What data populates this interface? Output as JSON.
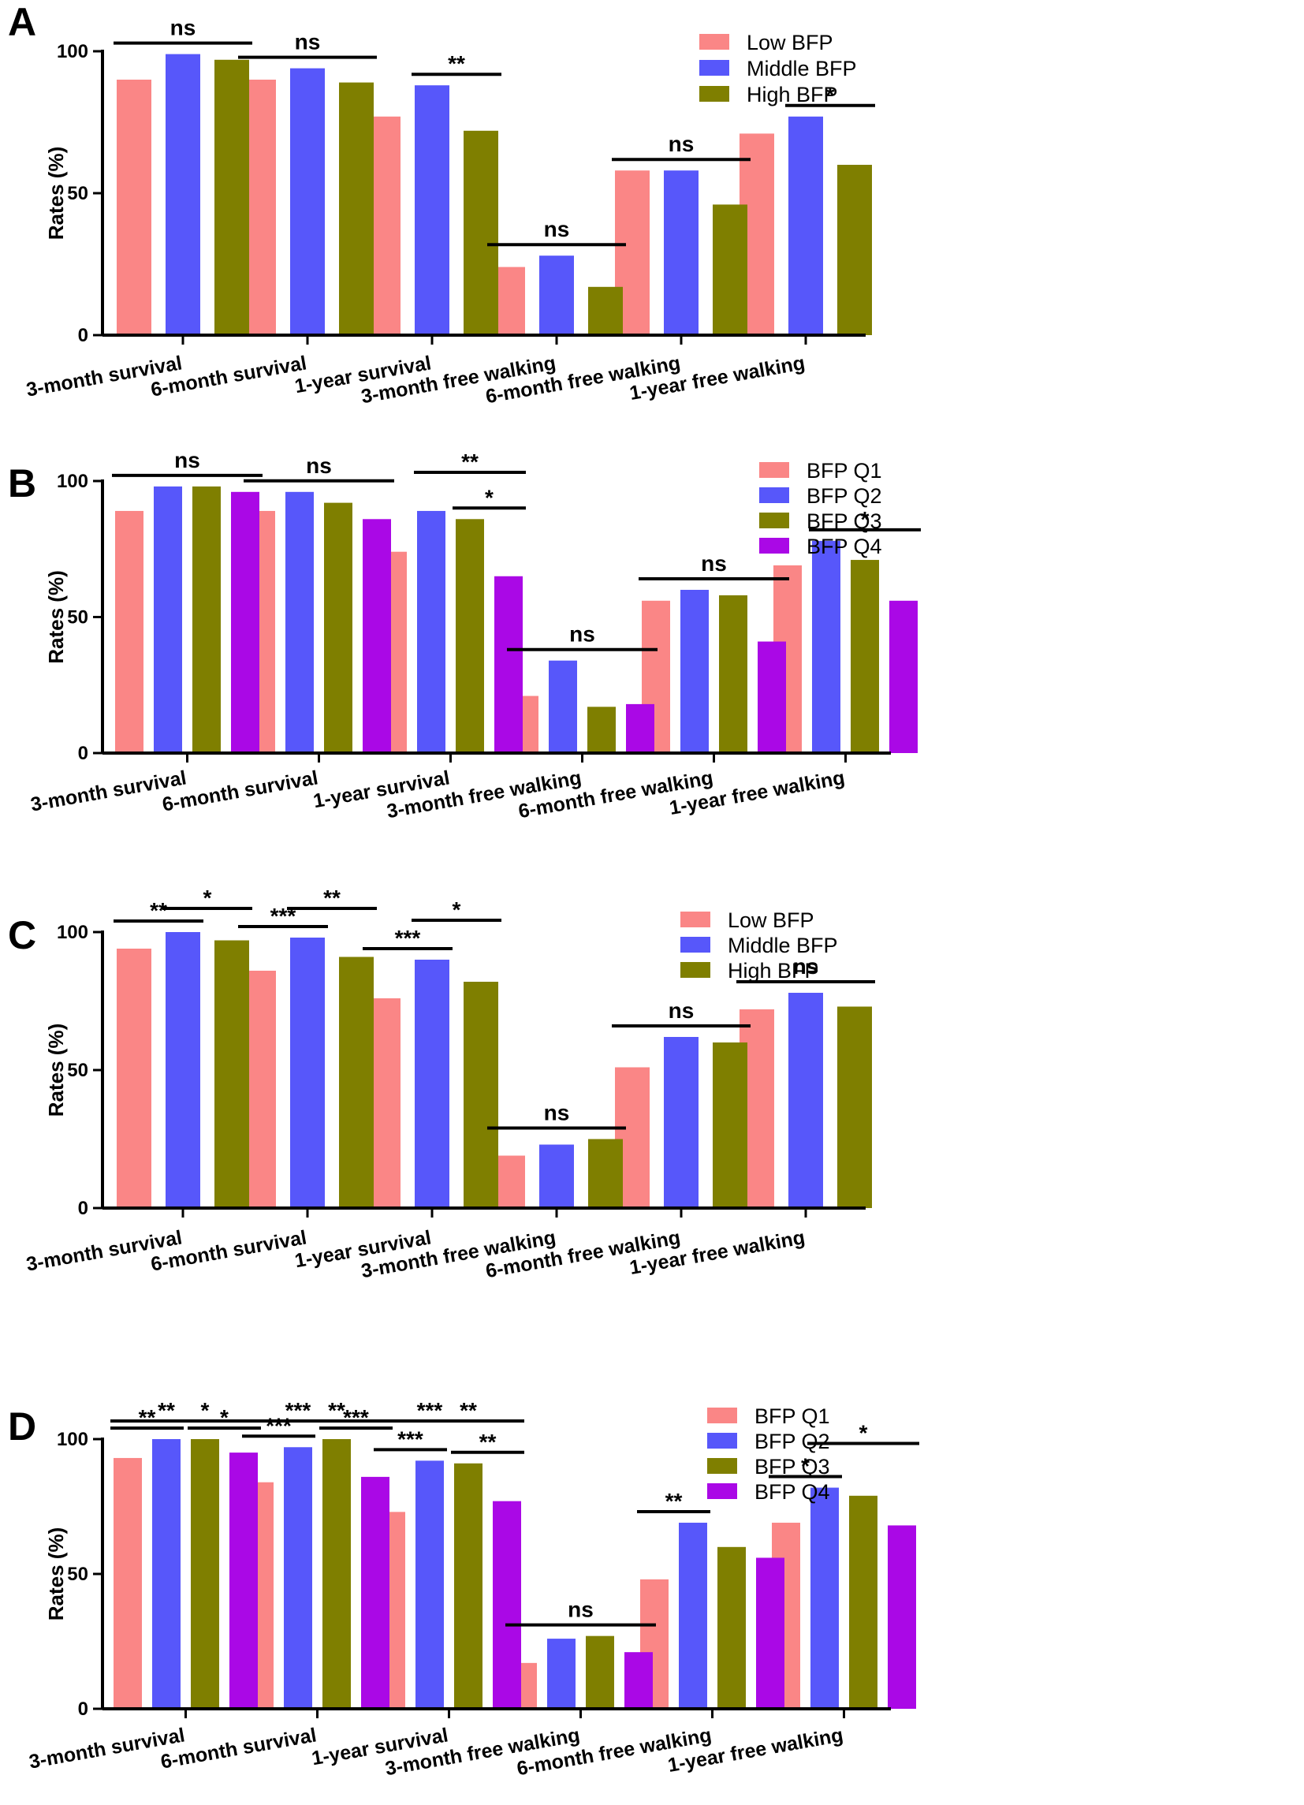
{
  "chart_data": [
    {
      "type": "bar",
      "panel_label": "A",
      "ylabel": "Rates (%)",
      "ylim": [
        0,
        100
      ],
      "yticks": [
        "0",
        "50",
        "100"
      ],
      "categories": [
        "3-month survival",
        "6-month survival",
        "1-year survival",
        "3-month free walking",
        "6-month free walking",
        "1-year free walking"
      ],
      "series": [
        {
          "name": "Low BFP",
          "color": "#fa8686",
          "values": [
            90,
            90,
            77,
            24,
            58,
            71
          ]
        },
        {
          "name": "Middle BFP",
          "color": "#5757fa",
          "values": [
            99,
            94,
            88,
            28,
            58,
            77
          ]
        },
        {
          "name": "High BFP",
          "color": "#7f7f00",
          "values": [
            97,
            89,
            72,
            17,
            46,
            60
          ]
        }
      ],
      "legend_position": "top-center",
      "annotations": [
        {
          "label": "ns",
          "category": 0,
          "from": 0,
          "to": 2,
          "level": 0
        },
        {
          "label": "ns",
          "category": 1,
          "from": 0,
          "to": 2,
          "level": 0
        },
        {
          "label": "**",
          "category": 2,
          "from": 1,
          "to": 2,
          "level": 0
        },
        {
          "label": "ns",
          "category": 3,
          "from": 0,
          "to": 2,
          "level": 0
        },
        {
          "label": "ns",
          "category": 4,
          "from": 0,
          "to": 2,
          "level": 0
        },
        {
          "label": "*",
          "category": 5,
          "from": 1,
          "to": 2,
          "level": 0
        }
      ]
    },
    {
      "type": "bar",
      "panel_label": "B",
      "ylabel": "Rates (%)",
      "ylim": [
        0,
        100
      ],
      "yticks": [
        "0",
        "50",
        "100"
      ],
      "categories": [
        "3-month survival",
        "6-month survival",
        "1-year survival",
        "3-month free walking",
        "6-month free walking",
        "1-year free walking"
      ],
      "series": [
        {
          "name": "BFP Q1",
          "color": "#fa8686",
          "values": [
            89,
            89,
            74,
            21,
            56,
            69
          ]
        },
        {
          "name": "BFP Q2",
          "color": "#5757fa",
          "values": [
            98,
            96,
            89,
            34,
            60,
            78
          ]
        },
        {
          "name": "BFP Q3",
          "color": "#7f7f00",
          "values": [
            98,
            92,
            86,
            17,
            58,
            71
          ]
        },
        {
          "name": "BFP Q4",
          "color": "#aa08e6",
          "values": [
            96,
            86,
            65,
            18,
            41,
            56
          ]
        }
      ],
      "legend_position": "top-center",
      "annotations": [
        {
          "label": "ns",
          "category": 0,
          "from": 0,
          "to": 3,
          "level": 0
        },
        {
          "label": "ns",
          "category": 1,
          "from": 0,
          "to": 3,
          "level": 0
        },
        {
          "label": "**",
          "category": 2,
          "from": 1,
          "to": 3,
          "level": 1
        },
        {
          "label": "*",
          "category": 2,
          "from": 2,
          "to": 3,
          "level": 0
        },
        {
          "label": "ns",
          "category": 3,
          "from": 0,
          "to": 3,
          "level": 0
        },
        {
          "label": "ns",
          "category": 4,
          "from": 0,
          "to": 3,
          "level": 0
        },
        {
          "label": "*",
          "category": 5,
          "from": 1,
          "to": 3,
          "level": 0
        }
      ]
    },
    {
      "type": "bar",
      "panel_label": "C",
      "ylabel": "Rates (%)",
      "ylim": [
        0,
        100
      ],
      "yticks": [
        "0",
        "50",
        "100"
      ],
      "categories": [
        "3-month survival",
        "6-month survival",
        "1-year survival",
        "3-month free walking",
        "6-month free walking",
        "1-year free walking"
      ],
      "series": [
        {
          "name": "Low BFP",
          "color": "#fa8686",
          "values": [
            94,
            86,
            76,
            19,
            51,
            72
          ]
        },
        {
          "name": "Middle BFP",
          "color": "#5757fa",
          "values": [
            100,
            98,
            90,
            23,
            62,
            78
          ]
        },
        {
          "name": "High BFP",
          "color": "#7f7f00",
          "values": [
            97,
            91,
            82,
            25,
            60,
            73
          ]
        }
      ],
      "legend_position": "top-center",
      "annotations": [
        {
          "label": "**",
          "category": 0,
          "from": 0,
          "to": 1,
          "level": 0
        },
        {
          "label": "*",
          "category": 0,
          "from": 1,
          "to": 2,
          "level": 1
        },
        {
          "label": "***",
          "category": 1,
          "from": 0,
          "to": 1,
          "level": 0
        },
        {
          "label": "**",
          "category": 1,
          "from": 1,
          "to": 2,
          "level": 1
        },
        {
          "label": "***",
          "category": 2,
          "from": 0,
          "to": 1,
          "level": 0
        },
        {
          "label": "*",
          "category": 2,
          "from": 1,
          "to": 2,
          "level": 1
        },
        {
          "label": "ns",
          "category": 3,
          "from": 0,
          "to": 2,
          "level": 0
        },
        {
          "label": "ns",
          "category": 4,
          "from": 0,
          "to": 2,
          "level": 0
        },
        {
          "label": "ns",
          "category": 5,
          "from": 0,
          "to": 2,
          "level": 0
        }
      ]
    },
    {
      "type": "bar",
      "panel_label": "D",
      "ylabel": "Rates (%)",
      "ylim": [
        0,
        100
      ],
      "yticks": [
        "0",
        "50",
        "100"
      ],
      "categories": [
        "3-month survival",
        "6-month survival",
        "1-year survival",
        "3-month free walking",
        "6-month free walking",
        "1-year free walking"
      ],
      "series": [
        {
          "name": "BFP Q1",
          "color": "#fa8686",
          "values": [
            93,
            84,
            73,
            17,
            48,
            69
          ]
        },
        {
          "name": "BFP Q2",
          "color": "#5757fa",
          "values": [
            100,
            97,
            92,
            26,
            69,
            82
          ]
        },
        {
          "name": "BFP Q3",
          "color": "#7f7f00",
          "values": [
            100,
            100,
            91,
            27,
            60,
            79
          ]
        },
        {
          "name": "BFP Q4",
          "color": "#aa08e6",
          "values": [
            95,
            86,
            77,
            21,
            56,
            68
          ]
        }
      ],
      "legend_position": "top-center",
      "annotations": [
        {
          "label": "**",
          "category": 0,
          "from": 0,
          "to": 1,
          "level": 0
        },
        {
          "label": "*",
          "category": 0,
          "from": 2,
          "to": 3,
          "level": 0
        },
        {
          "label": "**",
          "category": 0,
          "from": 0,
          "to": 2,
          "level": 1
        },
        {
          "label": "*",
          "category": 0,
          "from": 1,
          "to": 3,
          "level": 2
        },
        {
          "label": "***",
          "category": 1,
          "from": 0,
          "to": 1,
          "level": 0
        },
        {
          "label": "***",
          "category": 1,
          "from": 2,
          "to": 3,
          "level": 0
        },
        {
          "label": "***",
          "category": 1,
          "from": 0,
          "to": 2,
          "level": 1
        },
        {
          "label": "**",
          "category": 1,
          "from": 1,
          "to": 3,
          "level": 2
        },
        {
          "label": "***",
          "category": 2,
          "from": 0,
          "to": 1,
          "level": 0
        },
        {
          "label": "**",
          "category": 2,
          "from": 2,
          "to": 3,
          "level": 0
        },
        {
          "label": "***",
          "category": 2,
          "from": 0,
          "to": 2,
          "level": 1
        },
        {
          "label": "**",
          "category": 2,
          "from": 1,
          "to": 3,
          "level": 2
        },
        {
          "label": "ns",
          "category": 3,
          "from": 0,
          "to": 3,
          "level": 0
        },
        {
          "label": "**",
          "category": 4,
          "from": 0,
          "to": 1,
          "level": 0
        },
        {
          "label": "*",
          "category": 5,
          "from": 0,
          "to": 1,
          "level": 0
        },
        {
          "label": "*",
          "category": 5,
          "from": 1,
          "to": 3,
          "level": 1
        }
      ]
    }
  ]
}
